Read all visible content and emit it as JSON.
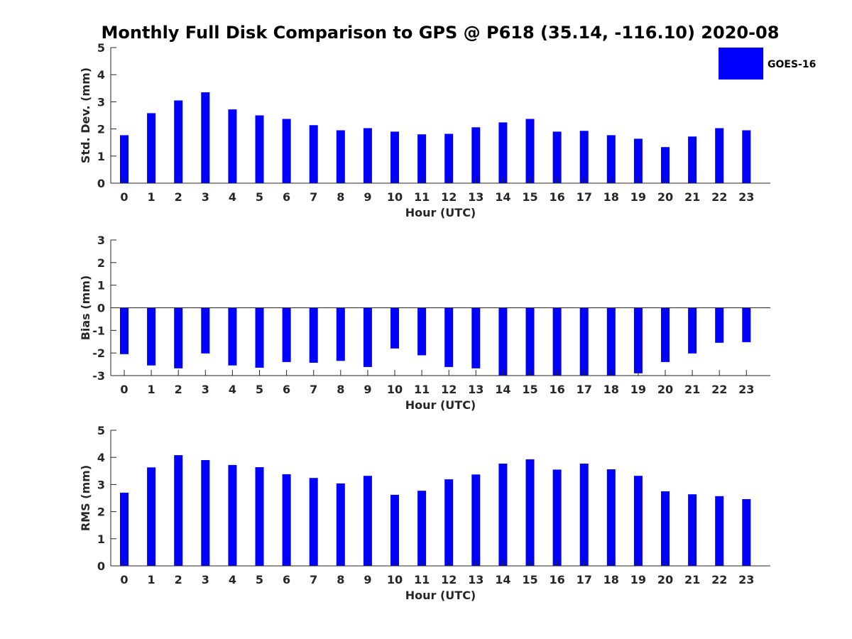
{
  "title": "Monthly Full Disk Comparison to GPS @ P618 (35.14, -116.10) 2020-08",
  "legend": {
    "label": "GOES-16",
    "color": "#0000ff",
    "placement": "top-right"
  },
  "chart_data": [
    {
      "type": "bar",
      "xlabel": "Hour (UTC)",
      "ylabel": "Std. Dev. (mm)",
      "ylim": [
        0,
        5
      ],
      "yticks": [
        0,
        1,
        2,
        3,
        4,
        5
      ],
      "categories": [
        "0",
        "1",
        "2",
        "3",
        "4",
        "5",
        "6",
        "7",
        "8",
        "9",
        "10",
        "11",
        "12",
        "13",
        "14",
        "15",
        "16",
        "17",
        "18",
        "19",
        "20",
        "21",
        "22",
        "23"
      ],
      "series": [
        {
          "name": "GOES-16",
          "color": "#0000ff",
          "values": [
            1.77,
            2.58,
            3.05,
            3.35,
            2.72,
            2.5,
            2.37,
            2.14,
            1.95,
            2.03,
            1.9,
            1.8,
            1.82,
            2.06,
            2.24,
            2.37,
            1.9,
            1.93,
            1.77,
            1.64,
            1.33,
            1.72,
            2.03,
            1.95
          ]
        }
      ]
    },
    {
      "type": "bar",
      "xlabel": "Hour (UTC)",
      "ylabel": "Bias (mm)",
      "ylim": [
        -3,
        3
      ],
      "yticks": [
        -3,
        -2,
        -1,
        0,
        1,
        2,
        3
      ],
      "categories": [
        "0",
        "1",
        "2",
        "3",
        "4",
        "5",
        "6",
        "7",
        "8",
        "9",
        "10",
        "11",
        "12",
        "13",
        "14",
        "15",
        "16",
        "17",
        "18",
        "19",
        "20",
        "21",
        "22",
        "23"
      ],
      "series": [
        {
          "name": "GOES-16",
          "color": "#0000ff",
          "values": [
            -2.05,
            -2.55,
            -2.68,
            -2.02,
            -2.55,
            -2.65,
            -2.4,
            -2.43,
            -2.35,
            -2.62,
            -1.8,
            -2.1,
            -2.62,
            -2.68,
            -3.0,
            -3.0,
            -3.0,
            -3.0,
            -3.0,
            -2.9,
            -2.4,
            -2.02,
            -1.55,
            -1.52
          ]
        }
      ]
    },
    {
      "type": "bar",
      "xlabel": "Hour (UTC)",
      "ylabel": "RMS (mm)",
      "ylim": [
        0,
        5
      ],
      "yticks": [
        0,
        1,
        2,
        3,
        4,
        5
      ],
      "categories": [
        "0",
        "1",
        "2",
        "3",
        "4",
        "5",
        "6",
        "7",
        "8",
        "9",
        "10",
        "11",
        "12",
        "13",
        "14",
        "15",
        "16",
        "17",
        "18",
        "19",
        "20",
        "21",
        "22",
        "23"
      ],
      "series": [
        {
          "name": "GOES-16",
          "color": "#0000ff",
          "values": [
            2.7,
            3.63,
            4.08,
            3.9,
            3.72,
            3.64,
            3.38,
            3.24,
            3.04,
            3.32,
            2.62,
            2.77,
            3.19,
            3.37,
            3.77,
            3.93,
            3.55,
            3.77,
            3.56,
            3.32,
            2.75,
            2.64,
            2.57,
            2.46
          ]
        }
      ]
    }
  ]
}
